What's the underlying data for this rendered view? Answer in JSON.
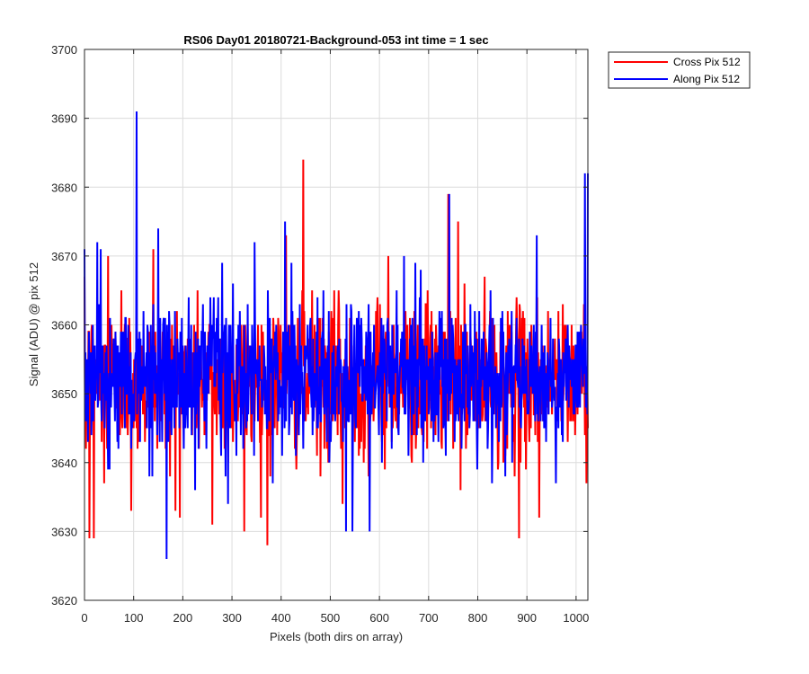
{
  "chart_data": {
    "type": "line",
    "title": "RS06 Day01 20180721-Background-053 int time = 1 sec",
    "xlabel": "Pixels (both dirs on array)",
    "ylabel": "Signal (ADU) @ pix 512",
    "xlim": [
      0,
      1024
    ],
    "ylim": [
      3620,
      3700
    ],
    "xticks": [
      0,
      100,
      200,
      300,
      400,
      500,
      600,
      700,
      800,
      900,
      1000
    ],
    "yticks": [
      3620,
      3630,
      3640,
      3650,
      3660,
      3670,
      3680,
      3690,
      3700
    ],
    "grid": true,
    "legend_position": "outside top-right",
    "series": [
      {
        "name": "Cross Pix 512",
        "color": "#ff0000",
        "mean": 3652,
        "noise_std": 5.5,
        "notable_points": [
          [
            3,
            3642
          ],
          [
            10,
            3629
          ],
          [
            19,
            3629
          ],
          [
            40,
            3637
          ],
          [
            48,
            3670
          ],
          [
            75,
            3665
          ],
          [
            95,
            3633
          ],
          [
            110,
            3643
          ],
          [
            140,
            3671
          ],
          [
            185,
            3633
          ],
          [
            260,
            3631
          ],
          [
            325,
            3630
          ],
          [
            372,
            3628
          ],
          [
            410,
            3673
          ],
          [
            445,
            3684
          ],
          [
            525,
            3634
          ],
          [
            618,
            3670
          ],
          [
            740,
            3679
          ],
          [
            760,
            3675
          ],
          [
            860,
            3642
          ],
          [
            884,
            3629
          ],
          [
            925,
            3632
          ],
          [
            1022,
            3650
          ]
        ],
        "values": []
      },
      {
        "name": "Along Pix 512",
        "color": "#0000ff",
        "mean": 3652,
        "noise_std": 5.5,
        "notable_points": [
          [
            0,
            3671
          ],
          [
            26,
            3672
          ],
          [
            106,
            3691
          ],
          [
            150,
            3674
          ],
          [
            167,
            3626
          ],
          [
            280,
            3669
          ],
          [
            408,
            3675
          ],
          [
            532,
            3630
          ],
          [
            545,
            3630
          ],
          [
            580,
            3630
          ],
          [
            650,
            3670
          ],
          [
            742,
            3679
          ],
          [
            920,
            3673
          ],
          [
            1010,
            3660
          ],
          [
            1018,
            3682
          ],
          [
            1024,
            3682
          ]
        ],
        "values": []
      }
    ]
  }
}
